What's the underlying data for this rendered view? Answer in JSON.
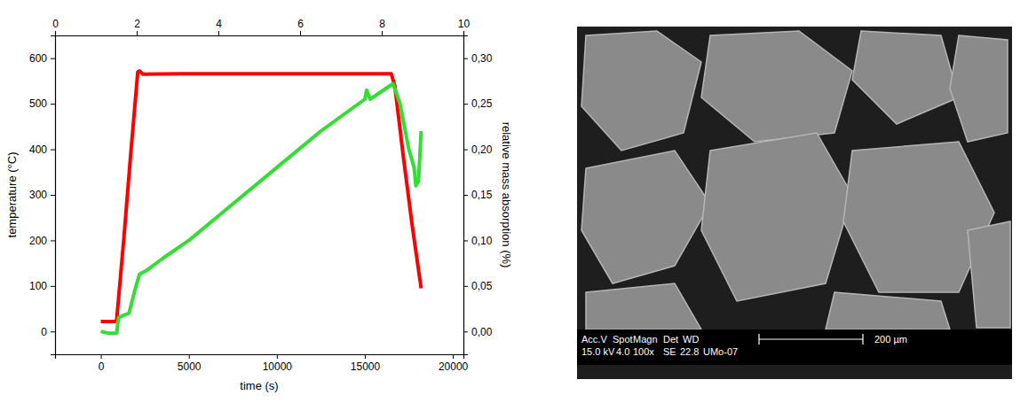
{
  "chart_data": {
    "type": "line",
    "x_label": "time (s)",
    "y_label": "temperature (°C)",
    "y2_label": "relative mass absorption (%)",
    "xlim": [
      -2600,
      20600
    ],
    "xticks": [
      0,
      5000,
      10000,
      15000,
      20000
    ],
    "x2lim": [
      0,
      10
    ],
    "x2ticks": [
      0,
      2,
      4,
      6,
      8,
      10
    ],
    "ylim": [
      -50,
      650
    ],
    "yticks": [
      0,
      100,
      200,
      300,
      400,
      500,
      600
    ],
    "y2lim": [
      -0.025,
      0.325
    ],
    "y2ticks": [
      {
        "value": 0,
        "label": "0,00"
      },
      {
        "value": 0.05,
        "label": "0,05"
      },
      {
        "value": 0.1,
        "label": "0,10"
      },
      {
        "value": 0.15,
        "label": "0,15"
      },
      {
        "value": 0.2,
        "label": "0,20"
      },
      {
        "value": 0.25,
        "label": "0,25"
      },
      {
        "value": 0.3,
        "label": "0,30"
      }
    ],
    "series": [
      {
        "color": "#ff0000",
        "x": [
          0,
          800,
          900,
          1300,
          1700,
          2100,
          2200,
          2400,
          4600,
          10000,
          16500,
          16700,
          17200,
          17700,
          18200
        ],
        "values": [
          22,
          22,
          25,
          200,
          390,
          570,
          572,
          565,
          566,
          566,
          566,
          540,
          380,
          230,
          95
        ]
      },
      {
        "color": "#33dd33",
        "axis": "y2",
        "x": [
          0,
          500,
          900,
          1000,
          1300,
          1600,
          2000,
          2200,
          2600,
          3500,
          5000,
          7500,
          10000,
          12500,
          15000,
          15100,
          15300,
          16600,
          17000,
          17500,
          17800,
          17900,
          18050,
          18200
        ],
        "values": [
          0,
          -0.002,
          -0.002,
          0.015,
          0.018,
          0.02,
          0.05,
          0.063,
          0.067,
          0.08,
          0.1,
          0.14,
          0.18,
          0.22,
          0.255,
          0.265,
          0.255,
          0.272,
          0.25,
          0.2,
          0.18,
          0.16,
          0.165,
          0.22
        ]
      }
    ]
  },
  "micrograph": {
    "info_header": [
      "Acc.V",
      "Spot",
      "Magn",
      "Det",
      "WD"
    ],
    "info_values": [
      "15.0 kV",
      "4.0",
      "100x",
      "SE",
      "22.8",
      "UMo-07"
    ],
    "scale_bar": "200 µm"
  }
}
